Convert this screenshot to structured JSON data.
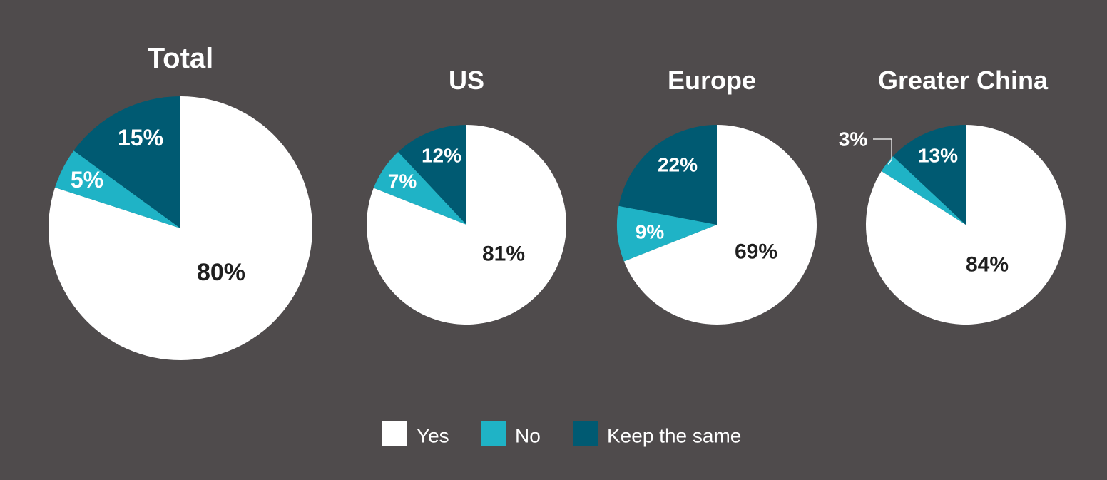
{
  "chart_data": {
    "type": "pie",
    "legend": [
      {
        "key": "yes",
        "label": "Yes",
        "color": "#ffffff"
      },
      {
        "key": "no",
        "label": "No",
        "color": "#1fb3c6"
      },
      {
        "key": "keep",
        "label": "Keep the same",
        "color": "#005a72"
      }
    ],
    "legend_position": "bottom-center",
    "charts": [
      {
        "title": "Total",
        "slices": [
          {
            "key": "yes",
            "value": 80,
            "label": "80%"
          },
          {
            "key": "no",
            "value": 5,
            "label": "5%"
          },
          {
            "key": "keep",
            "value": 15,
            "label": "15%"
          }
        ]
      },
      {
        "title": "US",
        "slices": [
          {
            "key": "yes",
            "value": 81,
            "label": "81%"
          },
          {
            "key": "no",
            "value": 7,
            "label": "7%"
          },
          {
            "key": "keep",
            "value": 12,
            "label": "12%"
          }
        ]
      },
      {
        "title": "Europe",
        "slices": [
          {
            "key": "yes",
            "value": 69,
            "label": "69%"
          },
          {
            "key": "no",
            "value": 9,
            "label": "9%"
          },
          {
            "key": "keep",
            "value": 22,
            "label": "22%"
          }
        ]
      },
      {
        "title": "Greater China",
        "slices": [
          {
            "key": "yes",
            "value": 84,
            "label": "84%"
          },
          {
            "key": "no",
            "value": 3,
            "label": "3%"
          },
          {
            "key": "keep",
            "value": 13,
            "label": "13%"
          }
        ]
      }
    ]
  }
}
